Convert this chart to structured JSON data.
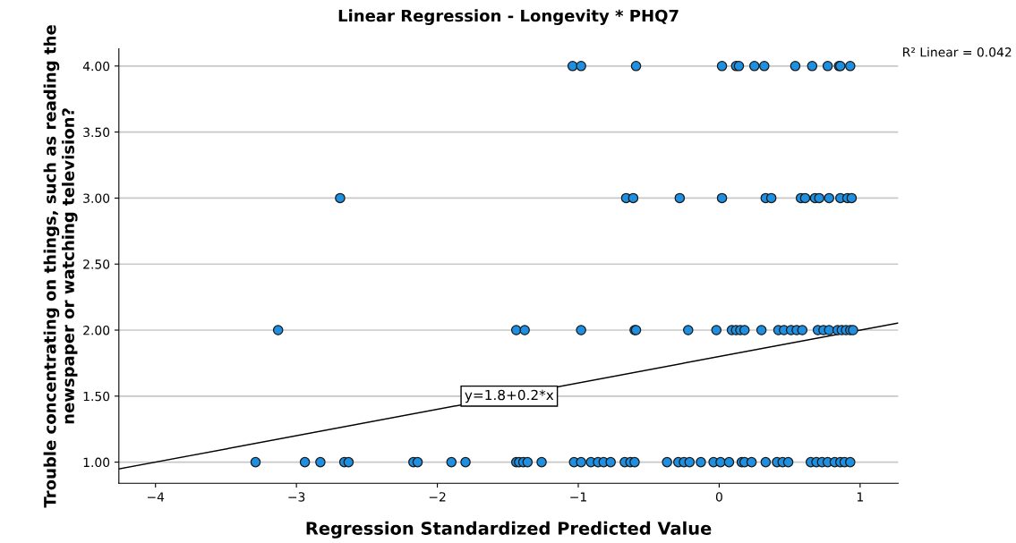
{
  "chart_data": {
    "type": "scatter",
    "title": "Linear Regression - Longevity * PHQ7",
    "xlabel": "Regression Standardized Predicted Value",
    "ylabel": "Trouble concentrating on things, such as reading the newspaper or watching television?",
    "xlim": [
      -4.26,
      1.27
    ],
    "xticks": [
      {
        "value": -4,
        "label": "−4"
      },
      {
        "value": -3,
        "label": "−3"
      },
      {
        "value": -2,
        "label": "−2"
      },
      {
        "value": -1,
        "label": "−1"
      },
      0,
      1
    ],
    "ylim": [
      0.84,
      4.13
    ],
    "yticks": [
      {
        "value": 1,
        "label": "1.00"
      },
      {
        "value": 1.5,
        "label": "1.50"
      },
      {
        "value": 2,
        "label": "2.00"
      },
      {
        "value": 2.5,
        "label": "2.50"
      },
      {
        "value": 3,
        "label": "3.00"
      },
      {
        "value": 3.5,
        "label": "3.50"
      },
      {
        "value": 4,
        "label": "4.00"
      }
    ],
    "grid": "y",
    "marker": "circle",
    "series": [
      {
        "color": "#1e8fe1",
        "x": [
          -1.04,
          -0.98,
          -0.59,
          0.02,
          0.12,
          0.14,
          0.25,
          0.32,
          0.54,
          0.66,
          0.77,
          0.85,
          0.86,
          0.93,
          -2.69,
          -0.66,
          -0.61,
          -0.28,
          0.02,
          0.33,
          0.37,
          0.58,
          0.61,
          0.68,
          0.71,
          0.78,
          0.86,
          0.91,
          0.94,
          -3.13,
          -1.44,
          -1.38,
          -0.98,
          -0.6,
          -0.59,
          -0.22,
          -0.02,
          0.09,
          0.12,
          0.15,
          0.18,
          0.3,
          0.42,
          0.46,
          0.51,
          0.55,
          0.59,
          0.7,
          0.74,
          0.78,
          0.84,
          0.87,
          0.9,
          0.93,
          0.95,
          -3.29,
          -2.94,
          -2.83,
          -2.66,
          -2.63,
          -2.17,
          -2.14,
          -1.9,
          -1.8,
          -1.44,
          -1.42,
          -1.39,
          -1.36,
          -1.26,
          -1.03,
          -0.98,
          -0.91,
          -0.86,
          -0.82,
          -0.77,
          -0.67,
          -0.63,
          -0.6,
          -0.37,
          -0.29,
          -0.25,
          -0.21,
          -0.13,
          -0.04,
          0.01,
          0.07,
          0.16,
          0.18,
          0.23,
          0.33,
          0.41,
          0.45,
          0.49,
          0.65,
          0.69,
          0.73,
          0.77,
          0.82,
          0.86,
          0.89,
          0.93
        ],
        "values": [
          4,
          4,
          4,
          4,
          4,
          4,
          4,
          4,
          4,
          4,
          4,
          4,
          4,
          4,
          3,
          3,
          3,
          3,
          3,
          3,
          3,
          3,
          3,
          3,
          3,
          3,
          3,
          3,
          3,
          2,
          2,
          2,
          2,
          2,
          2,
          2,
          2,
          2,
          2,
          2,
          2,
          2,
          2,
          2,
          2,
          2,
          2,
          2,
          2,
          2,
          2,
          2,
          2,
          2,
          2,
          1,
          1,
          1,
          1,
          1,
          1,
          1,
          1,
          1,
          1,
          1,
          1,
          1,
          1,
          1,
          1,
          1,
          1,
          1,
          1,
          1,
          1,
          1,
          1,
          1,
          1,
          1,
          1,
          1,
          1,
          1,
          1,
          1,
          1,
          1,
          1,
          1,
          1,
          1,
          1,
          1,
          1,
          1,
          1,
          1,
          1
        ]
      },
      {
        "type": "line",
        "color": "#000000",
        "marker": "none",
        "x": [
          -4.26,
          1.27
        ],
        "values": [
          0.948,
          2.054
        ]
      }
    ],
    "annotations": [
      {
        "text": "y=1.8+0.2*x",
        "x": -1.49,
        "y": 1.5
      },
      "R² Linear = 0.042"
    ]
  }
}
